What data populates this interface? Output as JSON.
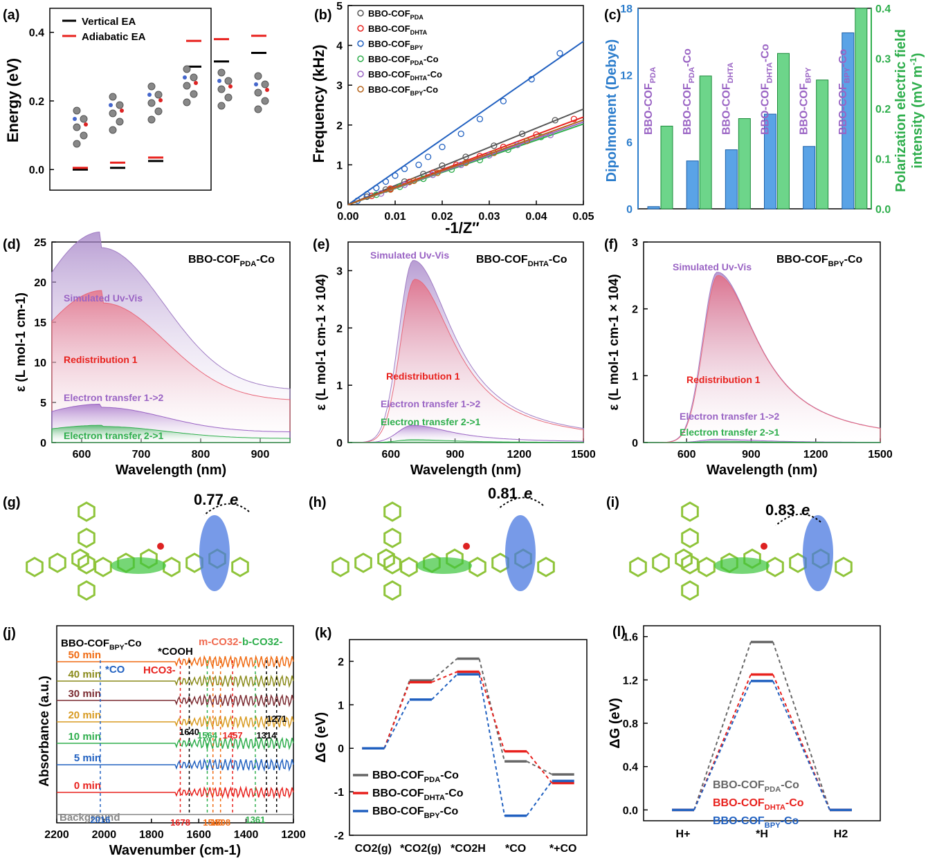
{
  "chart_data": [
    {
      "panel": "(a)",
      "type": "scatter",
      "ylabel": "Energy (eV)",
      "yticks": [
        "0.0",
        "0.2",
        "0.4"
      ],
      "ylim": [
        -0.06,
        0.47
      ],
      "legend": [
        "Vertical EA",
        "Adiabatic EA"
      ],
      "colors": {
        "Vertical EA": "#000000",
        "Adiabatic EA": "#e8211d"
      },
      "series": [
        {
          "name": "Vertical EA",
          "values": [
            0.0,
            0.005,
            0.025,
            0.3,
            0.315,
            0.34
          ]
        },
        {
          "name": "Adiabatic EA",
          "values": [
            0.005,
            0.02,
            0.035,
            0.375,
            0.38,
            0.39
          ]
        }
      ]
    },
    {
      "panel": "(b)",
      "type": "scatter",
      "xlabel": "-1/Z″",
      "ylabel": "Frequency (kHz)",
      "xlim": [
        0,
        0.05
      ],
      "ylim": [
        0,
        5
      ],
      "xticks": [
        "0.00",
        "0.01",
        "0.02",
        "0.03",
        "0.04",
        "0.05"
      ],
      "yticks": [
        "0",
        "1",
        "2",
        "3",
        "4",
        "5"
      ],
      "series": [
        {
          "name": "BBO-COFPDA",
          "label_main": "BBO-COF",
          "label_sub": "PDA",
          "label_tail": "",
          "color": "#555555",
          "slope": 48.0,
          "x": [
            0.004,
            0.008,
            0.012,
            0.016,
            0.02,
            0.025,
            0.031,
            0.037,
            0.044
          ],
          "y": [
            0.2,
            0.38,
            0.58,
            0.77,
            0.98,
            1.2,
            1.48,
            1.78,
            2.12
          ]
        },
        {
          "name": "BBO-COFDHTA",
          "label_main": "BBO-COF",
          "label_sub": "DHTA",
          "label_tail": "",
          "color": "#e8211d",
          "slope": 44.0,
          "x": [
            0.005,
            0.009,
            0.013,
            0.018,
            0.023,
            0.028,
            0.033,
            0.04,
            0.048
          ],
          "y": [
            0.22,
            0.4,
            0.57,
            0.8,
            1.0,
            1.22,
            1.45,
            1.76,
            2.15
          ]
        },
        {
          "name": "BBO-COFBPY",
          "label_main": "BBO-COF",
          "label_sub": "BPY",
          "label_tail": "",
          "color": "#2060c0",
          "slope": 82.0,
          "x": [
            0.002,
            0.004,
            0.006,
            0.008,
            0.01,
            0.012,
            0.015,
            0.017,
            0.02,
            0.024,
            0.028,
            0.033,
            0.039,
            0.045
          ],
          "y": [
            0.1,
            0.26,
            0.42,
            0.58,
            0.73,
            0.9,
            1.0,
            1.2,
            1.45,
            1.78,
            2.15,
            2.6,
            3.15,
            3.8
          ]
        },
        {
          "name": "BBO-COFPDA-Co",
          "label_main": "BBO-COF",
          "label_sub": "PDA",
          "label_tail": "-Co",
          "color": "#2eae4c",
          "slope": 40.5,
          "x": [
            0.006,
            0.011,
            0.016,
            0.022,
            0.028,
            0.034,
            0.041
          ],
          "y": [
            0.25,
            0.45,
            0.65,
            0.88,
            1.12,
            1.38,
            1.7
          ]
        },
        {
          "name": "BBO-COFDHTA-Co",
          "label_main": "BBO-COF",
          "label_sub": "DHTA",
          "label_tail": "-Co",
          "color": "#9a64c4",
          "slope": 41.5,
          "x": [
            0.007,
            0.012,
            0.018,
            0.024,
            0.03,
            0.036,
            0.043
          ],
          "y": [
            0.28,
            0.5,
            0.75,
            1.0,
            1.24,
            1.5,
            1.75
          ]
        },
        {
          "name": "BBO-COFBPY-Co",
          "label_main": "BBO-COF",
          "label_sub": "BPY",
          "label_tail": "-Co",
          "color": "#b5641c",
          "slope": 42.5,
          "x": [
            0.009,
            0.014,
            0.019,
            0.025,
            0.031,
            0.038
          ],
          "y": [
            0.38,
            0.6,
            0.8,
            1.05,
            1.3,
            1.6
          ]
        }
      ]
    },
    {
      "panel": "(c)",
      "type": "bar",
      "ylabel_left": "Dipolmoment (Debye)",
      "ylabel_right": "Polarization electric field intensity (mV m-1)",
      "ylim_left": [
        0,
        18
      ],
      "ylim_right": [
        0,
        0.4
      ],
      "yticks_left": [
        "0",
        "6",
        "12",
        "18"
      ],
      "yticks_right": [
        "0.0",
        "0.1",
        "0.2",
        "0.3",
        "0.4"
      ],
      "categories": [
        {
          "main": "BBO-COF",
          "sub": "PDA",
          "tail": ""
        },
        {
          "main": "BBO-COF",
          "sub": "PDA",
          "tail": "-Co"
        },
        {
          "main": "BBO-COF",
          "sub": "DHTA",
          "tail": ""
        },
        {
          "main": "BBO-COF",
          "sub": "DHTA",
          "tail": "-Co"
        },
        {
          "main": "BBO-COF",
          "sub": "BPY",
          "tail": ""
        },
        {
          "main": "BBO-COF",
          "sub": "BPY",
          "tail": "-Co"
        }
      ],
      "series": [
        {
          "name": "Dipolmoment",
          "color": "#2c7dcc",
          "values": [
            0.2,
            4.3,
            5.3,
            8.5,
            5.6,
            15.8
          ]
        },
        {
          "name": "Polarization electric field intensity",
          "color": "#2eae4c",
          "values": [
            0.165,
            0.265,
            0.18,
            0.31,
            0.257,
            0.4
          ]
        }
      ]
    },
    {
      "panel": "(d)",
      "type": "area",
      "title": "BBO-COFPDA-Co",
      "title_main": "BBO-COF",
      "title_sub": "PDA",
      "title_tail": "-Co",
      "xlabel": "Wavelength (nm)",
      "ylabel": "ε (L mol-1 cm-1)",
      "xlim": [
        550,
        950
      ],
      "ylim": [
        0,
        25
      ],
      "xticks": [
        "600",
        "700",
        "800",
        "900"
      ],
      "yticks": [
        "0",
        "5",
        "10",
        "15",
        "20",
        "25"
      ],
      "series": [
        {
          "name": "Simulated Uv-Vis",
          "peak_x": 632,
          "peak_y": 24.3,
          "base_y": 6.5,
          "color": "#a07cc4"
        },
        {
          "name": "Redistribution 1",
          "peak_x": 635,
          "peak_y": 17.4,
          "base_y": 5.2,
          "color": "#e8677a"
        },
        {
          "name": "Electron transfer 1->2",
          "peak_x": 632,
          "peak_y": 4.4,
          "base_y": 1.3,
          "color": "#9a64c4"
        },
        {
          "name": "Electron transfer 2->1",
          "peak_x": 635,
          "peak_y": 2.0,
          "base_y": 0.5,
          "color": "#2eae4c"
        }
      ]
    },
    {
      "panel": "(e)",
      "type": "area",
      "title": "BBO-COFDHTA-Co",
      "title_main": "BBO-COF",
      "title_sub": "DHTA",
      "title_tail": "-Co",
      "xlabel": "Wavelength (nm)",
      "ylabel": "ε (L mol-1 cm-1 × 104)",
      "xlim": [
        400,
        1500
      ],
      "ylim": [
        0,
        3.5
      ],
      "xticks": [
        "600",
        "900",
        "1200",
        "1500"
      ],
      "yticks": [
        "0",
        "1",
        "2",
        "3"
      ],
      "series": [
        {
          "name": "Simulated Uv-Vis",
          "peak_x": 705,
          "peak_y": 3.18,
          "color": "#a07cc4"
        },
        {
          "name": "Redistribution 1",
          "peak_x": 712,
          "peak_y": 2.85,
          "color": "#e8677a"
        },
        {
          "name": "Electron transfer 1->2",
          "peak_x": 700,
          "peak_y": 0.3,
          "color": "#9a64c4"
        },
        {
          "name": "Electron transfer 2->1",
          "peak_x": 700,
          "peak_y": 0.05,
          "color": "#2eae4c"
        }
      ]
    },
    {
      "panel": "(f)",
      "type": "area",
      "title": "BBO-COFBPY-Co",
      "title_main": "BBO-COF",
      "title_sub": "BPY",
      "title_tail": "-Co",
      "xlabel": "Wavelength (nm)",
      "ylabel": "ε (L mol-1 cm-1 × 104)",
      "xlim": [
        400,
        1500
      ],
      "ylim": [
        0,
        3
      ],
      "xticks": [
        "600",
        "900",
        "1200",
        "1500"
      ],
      "yticks": [
        "0",
        "1",
        "2",
        "3"
      ],
      "series": [
        {
          "name": "Simulated Uv-Vis",
          "peak_x": 742,
          "peak_y": 2.55,
          "color": "#a07cc4"
        },
        {
          "name": "Redistribution 1",
          "peak_x": 745,
          "peak_y": 2.5,
          "color": "#e8677a"
        },
        {
          "name": "Electron transfer 1->2",
          "peak_x": 740,
          "peak_y": 0.05,
          "color": "#9a64c4"
        },
        {
          "name": "Electron transfer 2->1",
          "peak_x": 740,
          "peak_y": 0.02,
          "color": "#2eae4c"
        }
      ]
    },
    {
      "panel": "(g)",
      "type": "other",
      "charge_label": "0.77 e"
    },
    {
      "panel": "(h)",
      "type": "other",
      "charge_label": "0.81 e"
    },
    {
      "panel": "(i)",
      "type": "other",
      "charge_label": "0.83 e"
    },
    {
      "panel": "(j)",
      "type": "line",
      "title_main": "BBO-COF",
      "title_sub": "BPY",
      "title_tail": "-Co",
      "xlabel": "Wavenumber (cm-1)",
      "ylabel": "Absorbance (a.u.)",
      "xlim": [
        2200,
        1200
      ],
      "xticks": [
        "2200",
        "2000",
        "1800",
        "1600",
        "1400",
        "1200"
      ],
      "series": [
        {
          "name": "Background",
          "color": "#888888"
        },
        {
          "name": "0 min",
          "color": "#e8211d"
        },
        {
          "name": "5 min",
          "color": "#2060c0"
        },
        {
          "name": "10 min",
          "color": "#2eae4c"
        },
        {
          "name": "20 min",
          "color": "#d89a20"
        },
        {
          "name": "30 min",
          "color": "#7a2a30"
        },
        {
          "name": "40 min",
          "color": "#8a8a1a"
        },
        {
          "name": "50 min",
          "color": "#f06a10"
        }
      ],
      "annotations": [
        {
          "text": "*CO",
          "color": "#2060c0"
        },
        {
          "text": "*COOH",
          "color": "#000000"
        },
        {
          "text": "HCO3-",
          "color": "#e8211d"
        },
        {
          "text": "m-CO32-",
          "color": "#f06a50"
        },
        {
          "text": "b-CO32-",
          "color": "#2eae4c"
        }
      ],
      "peak_labels": [
        {
          "text": "2016",
          "x": 2016,
          "color": "#2060c0"
        },
        {
          "text": "1678",
          "x": 1678,
          "color": "#e8211d"
        },
        {
          "text": "1640",
          "x": 1640,
          "color": "#000000"
        },
        {
          "text": "1564",
          "x": 1564,
          "color": "#2eae4c"
        },
        {
          "text": "1540",
          "x": 1540,
          "color": "#f06a10"
        },
        {
          "text": "1508",
          "x": 1508,
          "color": "#f06a10"
        },
        {
          "text": "1457",
          "x": 1457,
          "color": "#e8211d"
        },
        {
          "text": "1361",
          "x": 1361,
          "color": "#2eae4c"
        },
        {
          "text": "1314",
          "x": 1314,
          "color": "#000000"
        },
        {
          "text": "1271",
          "x": 1271,
          "color": "#000000"
        }
      ]
    },
    {
      "panel": "(k)",
      "type": "line",
      "ylabel": "ΔG (eV)",
      "ylim": [
        -2,
        2.5
      ],
      "yticks": [
        "-2",
        "-1",
        "0",
        "1",
        "2"
      ],
      "categories": [
        "CO2(g)",
        "*CO2(g)",
        "*CO2H",
        "*CO",
        "*+CO"
      ],
      "series": [
        {
          "name": "BBO-COFPDA-Co",
          "label_sub": "PDA",
          "color": "#666666",
          "values": [
            0,
            1.56,
            2.06,
            -0.3,
            -0.6
          ]
        },
        {
          "name": "BBO-COFDHTA-Co",
          "label_sub": "DHTA",
          "color": "#e8211d",
          "values": [
            0,
            1.52,
            1.76,
            -0.07,
            -0.8
          ]
        },
        {
          "name": "BBO-COFBPY-Co",
          "label_sub": "BPY",
          "color": "#2060c0",
          "values": [
            0,
            1.12,
            1.7,
            -1.55,
            -0.75
          ]
        }
      ]
    },
    {
      "panel": "(l)",
      "type": "line",
      "ylabel": "ΔG (eV)",
      "ylim": [
        -0.1,
        1.7
      ],
      "yticks": [
        "0.0",
        "0.4",
        "0.8",
        "1.2",
        "1.6"
      ],
      "categories": [
        "H+",
        "*H",
        "H2"
      ],
      "series": [
        {
          "name": "BBO-COFPDA-Co",
          "label_sub": "PDA",
          "color": "#666666",
          "values": [
            0,
            1.55,
            0
          ]
        },
        {
          "name": "BBO-COFDHTA-Co",
          "label_sub": "DHTA",
          "color": "#e8211d",
          "values": [
            0,
            1.25,
            0
          ]
        },
        {
          "name": "BBO-COFBPY-Co",
          "label_sub": "BPY",
          "color": "#2060c0",
          "values": [
            0,
            1.19,
            0
          ]
        }
      ]
    }
  ]
}
